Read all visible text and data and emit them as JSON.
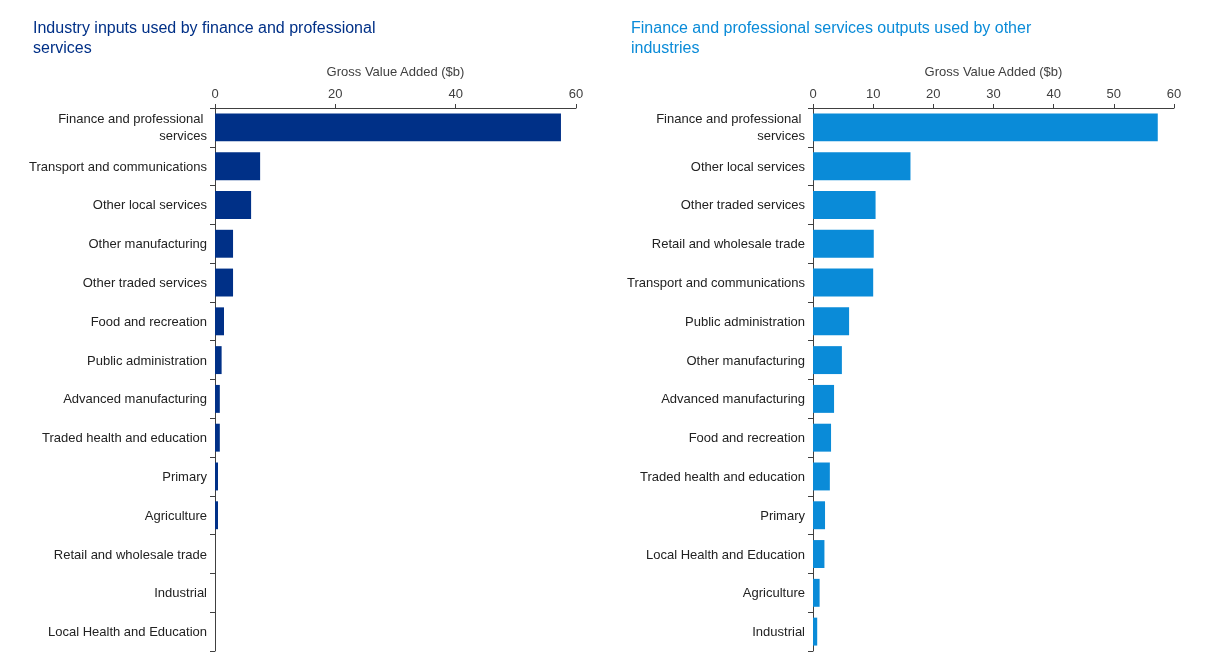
{
  "chart_data": [
    {
      "type": "bar",
      "orientation": "horizontal",
      "title": "Industry inputs used by finance and professional services",
      "xlabel": "Gross Value Added ($b)",
      "categories": [
        "Finance and professional services",
        "Transport and communications",
        "Other local services",
        "Other manufacturing",
        "Other traded services",
        "Food and recreation",
        "Public administration",
        "Advanced manufacturing",
        "Traded health and education",
        "Primary",
        "Agriculture",
        "Retail and wholesale trade",
        "Industrial",
        "Local Health and Education"
      ],
      "series": [
        {
          "color": "#003087",
          "values": [
            57.5,
            7.5,
            6.0,
            3.0,
            3.0,
            1.5,
            1.1,
            0.8,
            0.8,
            0.5,
            0.5,
            0,
            0,
            0
          ]
        }
      ],
      "xlim": [
        0,
        60
      ],
      "xticks": [
        0,
        20,
        40,
        60
      ],
      "grid": false
    },
    {
      "type": "bar",
      "orientation": "horizontal",
      "title": "Finance and professional services outputs used by other industries",
      "xlabel": "Gross Value Added ($b)",
      "categories": [
        "Finance and professional services",
        "Other local services",
        "Other traded services",
        "Retail and wholesale trade",
        "Transport and communications",
        "Public administration",
        "Other manufacturing",
        "Advanced manufacturing",
        "Food and recreation",
        "Traded health and education",
        "Primary",
        "Local Health and Education",
        "Agriculture",
        "Industrial"
      ],
      "series": [
        {
          "color": "#0a8bd8",
          "values": [
            57.3,
            16.2,
            10.4,
            10.1,
            10.0,
            6.0,
            4.8,
            3.5,
            3.0,
            2.8,
            2.0,
            1.9,
            1.1,
            0.7
          ]
        }
      ],
      "xlim": [
        0,
        60
      ],
      "xticks": [
        0,
        10,
        20,
        30,
        40,
        50,
        60
      ],
      "grid": false
    }
  ]
}
